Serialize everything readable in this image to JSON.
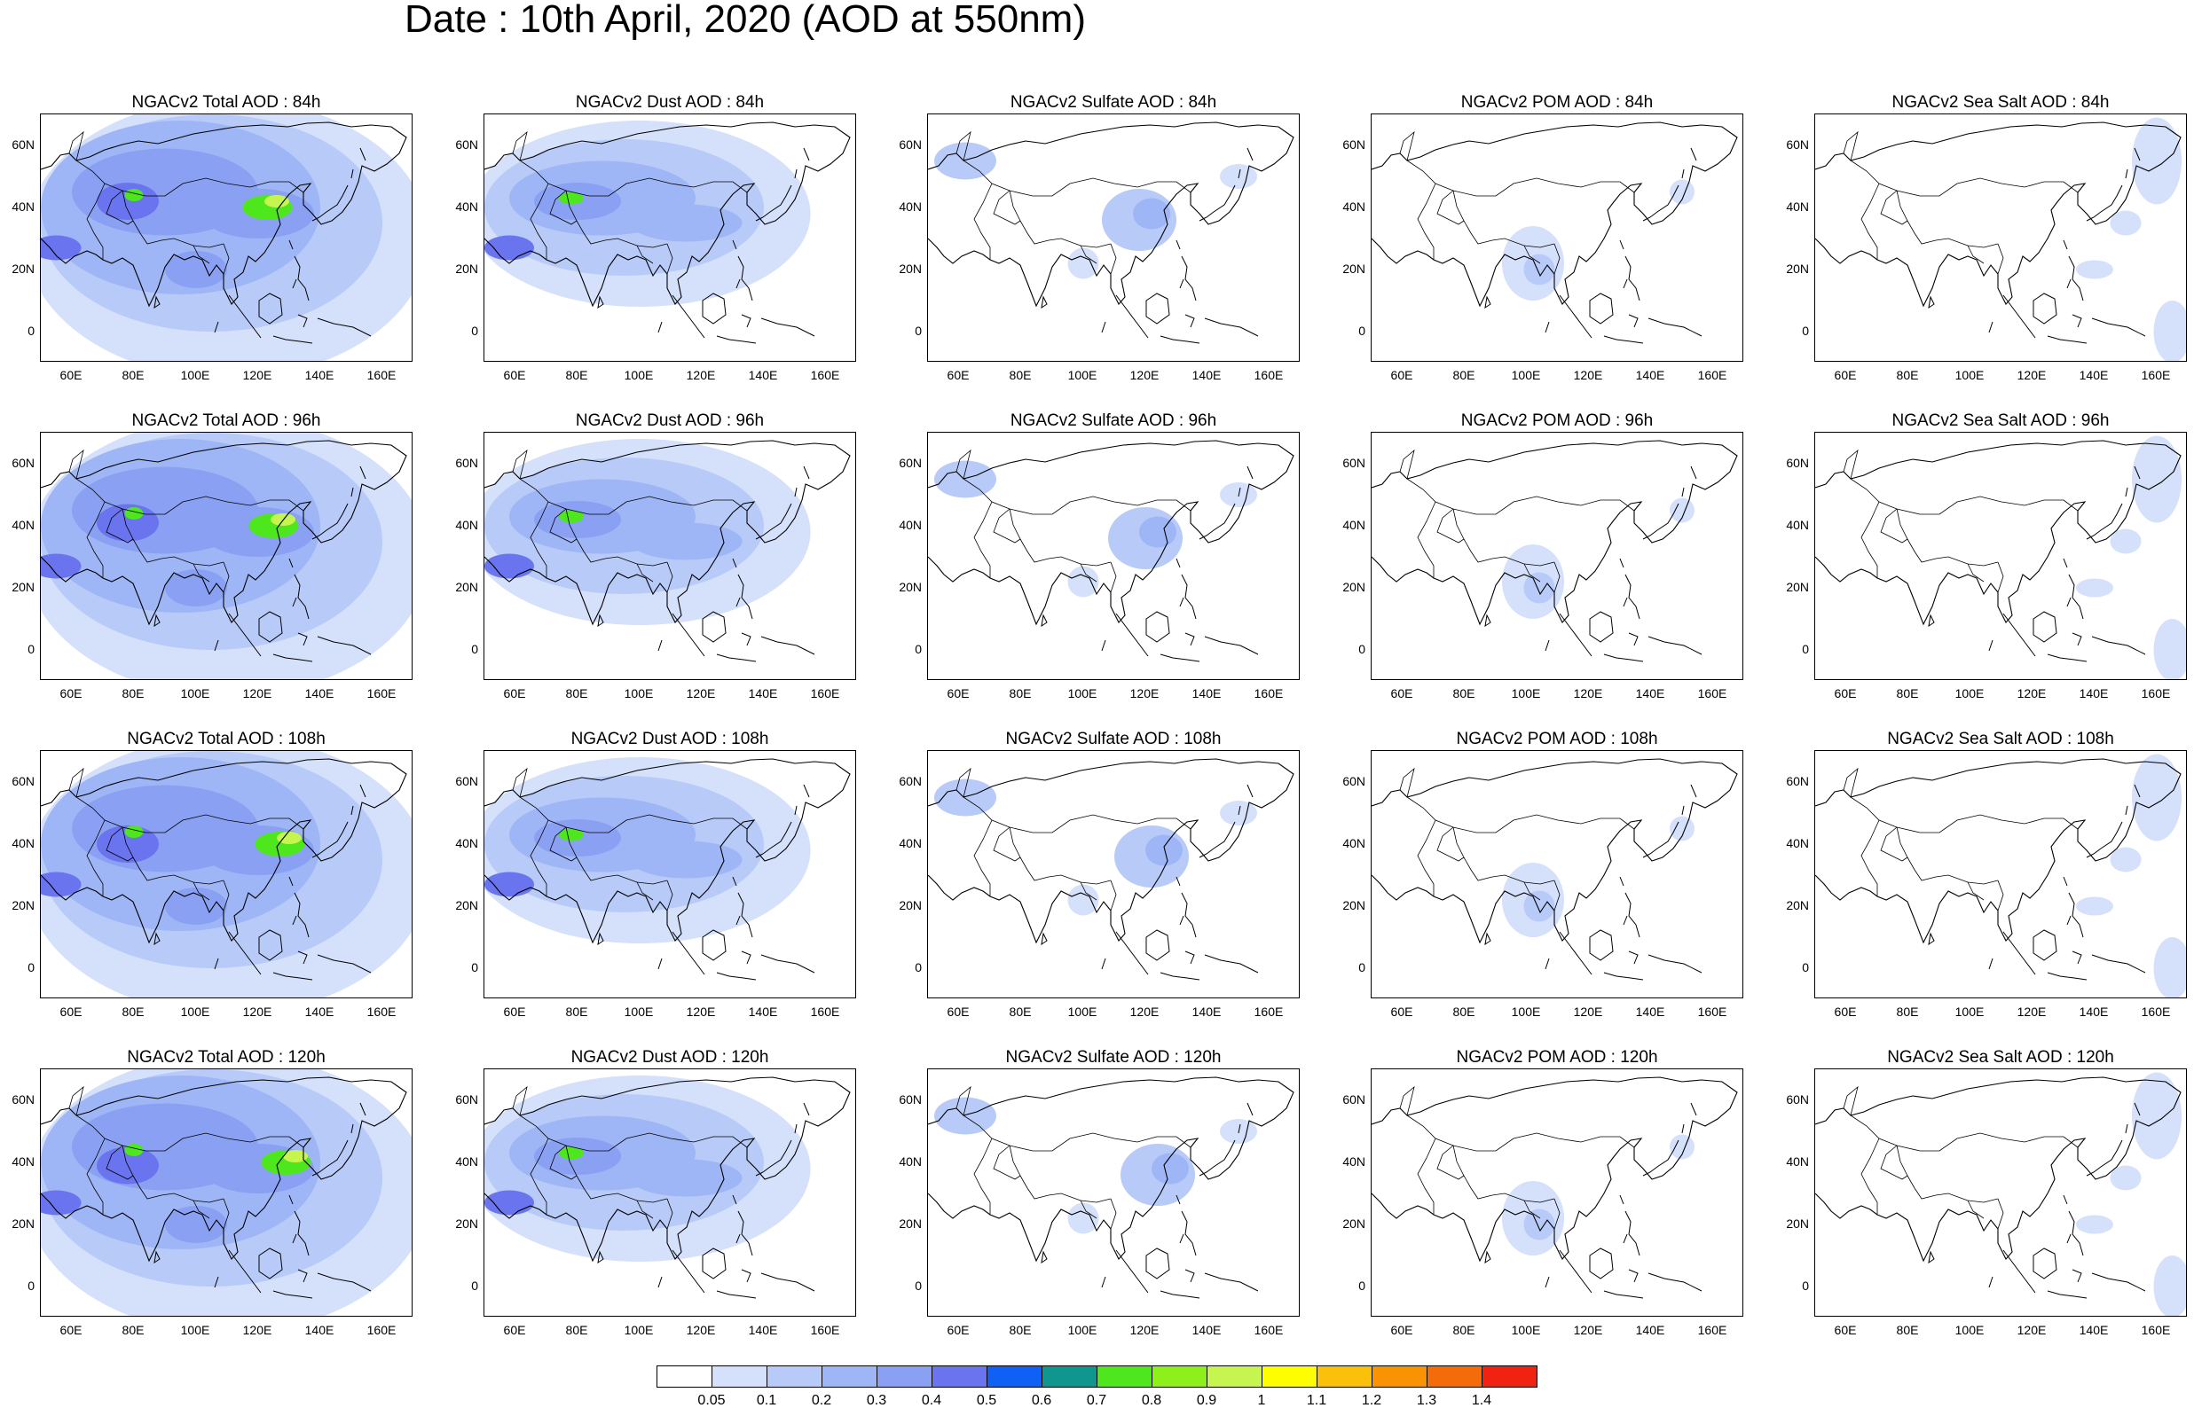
{
  "title": "Date : 10th April, 2020 (AOD at 550nm)",
  "map_extent": {
    "lon": [
      50,
      170
    ],
    "lat": [
      -10,
      70
    ]
  },
  "lat_ticks": [
    "60N",
    "40N",
    "20N",
    "0"
  ],
  "lon_ticks": [
    "60E",
    "80E",
    "100E",
    "120E",
    "140E",
    "160E"
  ],
  "columns": [
    "total",
    "dust",
    "sulfate",
    "pom",
    "seasalt"
  ],
  "panels": [
    [
      "NGACv2 Total AOD : 84h",
      "NGACv2 Dust AOD : 84h",
      "NGACv2 Sulfate AOD : 84h",
      "NGACv2 POM AOD : 84h",
      "NGACv2 Sea Salt AOD : 84h"
    ],
    [
      "NGACv2 Total AOD : 96h",
      "NGACv2 Dust AOD : 96h",
      "NGACv2 Sulfate AOD : 96h",
      "NGACv2 POM AOD : 96h",
      "NGACv2 Sea Salt AOD : 96h"
    ],
    [
      "NGACv2 Total AOD : 108h",
      "NGACv2 Dust AOD : 108h",
      "NGACv2 Sulfate AOD : 108h",
      "NGACv2 POM AOD : 108h",
      "NGACv2 Sea Salt AOD : 108h"
    ],
    [
      "NGACv2 Total AOD : 120h",
      "NGACv2 Dust AOD : 120h",
      "NGACv2 Sulfate AOD : 120h",
      "NGACv2 POM AOD : 120h",
      "NGACv2 Sea Salt  AOD : 120h"
    ]
  ],
  "colorbar": {
    "labels": [
      "0.05",
      "0.1",
      "0.2",
      "0.3",
      "0.4",
      "0.5",
      "0.6",
      "0.7",
      "0.8",
      "0.9",
      "1",
      "1.1",
      "1.2",
      "1.3",
      "1.4"
    ],
    "colors": [
      "#ffffff",
      "#d5e0fb",
      "#b8caf8",
      "#9fb6f6",
      "#8aa1f3",
      "#6a74ee",
      "#1060f5",
      "#10968f",
      "#4ee61c",
      "#8ef01a",
      "#c5f54e",
      "#fefe00",
      "#fbc00a",
      "#f99303",
      "#f46c0a",
      "#f02312"
    ]
  }
}
